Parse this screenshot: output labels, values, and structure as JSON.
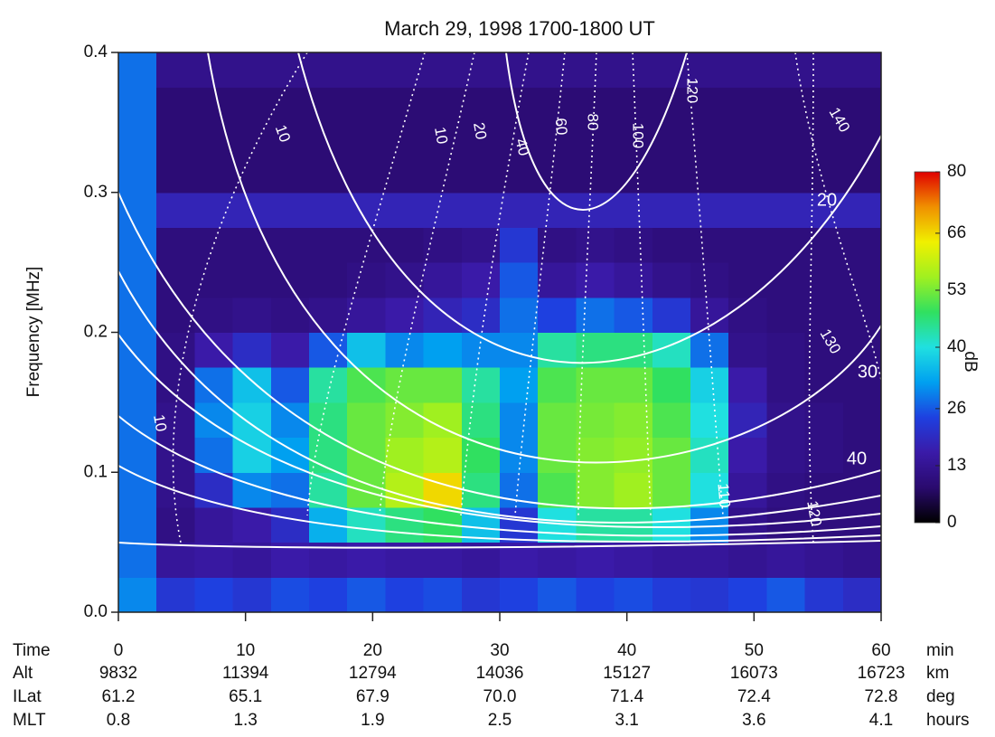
{
  "chart_data": {
    "type": "heatmap",
    "title": "March 29, 1998    1700-1800 UT",
    "ylabel": "Frequency [MHz]",
    "xlabel": "Time",
    "xunit": "min",
    "xlim": [
      0,
      60
    ],
    "ylim": [
      0,
      0.4
    ],
    "xticks": [
      0,
      10,
      20,
      30,
      40,
      50,
      60
    ],
    "yticks": [
      {
        "value": 0,
        "label": "0.0"
      },
      0.1,
      0.2,
      0.3,
      0.4
    ],
    "xbins": [
      0,
      3,
      6,
      9,
      12,
      15,
      18,
      21,
      24,
      27,
      30,
      33,
      36,
      39,
      42,
      45,
      48,
      51,
      54,
      57,
      60
    ],
    "ybins": [
      0,
      0.025,
      0.05,
      0.075,
      0.1,
      0.125,
      0.15,
      0.175,
      0.2,
      0.225,
      0.25,
      0.275,
      0.3,
      0.325,
      0.35,
      0.375,
      0.4
    ],
    "values": [
      [
        30,
        22,
        24,
        22,
        25,
        24,
        26,
        24,
        25,
        22,
        24,
        26,
        24,
        25,
        23,
        22,
        24,
        26,
        22,
        20
      ],
      [
        28,
        14,
        15,
        14,
        16,
        15,
        16,
        15,
        15,
        14,
        16,
        15,
        16,
        15,
        14,
        14,
        13,
        14,
        13,
        12
      ],
      [
        28,
        11,
        14,
        16,
        20,
        34,
        42,
        46,
        48,
        36,
        22,
        40,
        44,
        44,
        40,
        30,
        12,
        10,
        10,
        10
      ],
      [
        28,
        12,
        20,
        30,
        28,
        44,
        52,
        58,
        66,
        46,
        28,
        50,
        54,
        56,
        52,
        40,
        14,
        11,
        10,
        10
      ],
      [
        28,
        12,
        28,
        38,
        32,
        46,
        52,
        56,
        58,
        48,
        30,
        52,
        54,
        55,
        52,
        42,
        16,
        12,
        11,
        10
      ],
      [
        28,
        12,
        30,
        38,
        30,
        46,
        52,
        54,
        56,
        46,
        30,
        52,
        53,
        54,
        50,
        40,
        18,
        12,
        11,
        10
      ],
      [
        28,
        11,
        28,
        36,
        26,
        44,
        50,
        52,
        52,
        44,
        32,
        50,
        52,
        52,
        48,
        38,
        16,
        11,
        10,
        10
      ],
      [
        28,
        11,
        16,
        20,
        16,
        26,
        36,
        30,
        32,
        30,
        30,
        44,
        46,
        46,
        42,
        28,
        12,
        11,
        10,
        10
      ],
      [
        28,
        10,
        11,
        12,
        11,
        12,
        14,
        16,
        18,
        20,
        28,
        24,
        28,
        26,
        22,
        14,
        11,
        10,
        10,
        10
      ],
      [
        28,
        10,
        10,
        10,
        10,
        10,
        11,
        12,
        14,
        16,
        26,
        14,
        16,
        14,
        12,
        11,
        10,
        10,
        10,
        10
      ],
      [
        28,
        10,
        10,
        10,
        10,
        10,
        10,
        10,
        11,
        12,
        22,
        11,
        12,
        11,
        10,
        10,
        10,
        10,
        10,
        10
      ],
      [
        28,
        18,
        18,
        18,
        18,
        18,
        18,
        18,
        18,
        18,
        18,
        18,
        18,
        18,
        18,
        18,
        18,
        18,
        18,
        18
      ],
      [
        28,
        9,
        9,
        9,
        9,
        9,
        9,
        9,
        9,
        9,
        9,
        9,
        9,
        9,
        9,
        9,
        9,
        9,
        9,
        9
      ],
      [
        28,
        9,
        9,
        9,
        9,
        9,
        9,
        9,
        9,
        9,
        9,
        9,
        9,
        9,
        9,
        9,
        9,
        9,
        9,
        9
      ],
      [
        28,
        9,
        9,
        9,
        9,
        9,
        9,
        9,
        9,
        9,
        9,
        9,
        9,
        9,
        9,
        9,
        9,
        9,
        9,
        9
      ],
      [
        28,
        12,
        12,
        12,
        12,
        12,
        12,
        12,
        12,
        12,
        12,
        12,
        12,
        12,
        12,
        12,
        12,
        12,
        12,
        12
      ]
    ],
    "colormap": [
      "#000000",
      "#2a0a6e",
      "#3a1aa8",
      "#1e40e0",
      "#00a0f0",
      "#20e0e0",
      "#30e060",
      "#a0f020",
      "#f0f000",
      "#f09000",
      "#e00000"
    ],
    "colorbar": {
      "label": "dB",
      "lim": [
        0,
        80
      ],
      "ticks": [
        0,
        13,
        26,
        40,
        53,
        66,
        80
      ]
    },
    "ephemeris": [
      {
        "name": "Alt",
        "unit": "km",
        "values": [
          9832,
          11394,
          12794,
          14036,
          15127,
          16073,
          16723
        ]
      },
      {
        "name": "ILat",
        "unit": "deg",
        "values": [
          61.2,
          65.1,
          67.9,
          {
            "value": 70,
            "label": "70.0"
          },
          71.4,
          72.4,
          72.8
        ]
      },
      {
        "name": "MLT",
        "unit": "hours",
        "values": [
          0.8,
          1.3,
          1.9,
          2.5,
          3.1,
          3.6,
          4.1
        ]
      }
    ],
    "contours": {
      "solid_labels": [
        20,
        30,
        40
      ],
      "dotted_labels": [
        10,
        10,
        20,
        40,
        60,
        80,
        100,
        120,
        140,
        130,
        120,
        110,
        10
      ]
    }
  }
}
